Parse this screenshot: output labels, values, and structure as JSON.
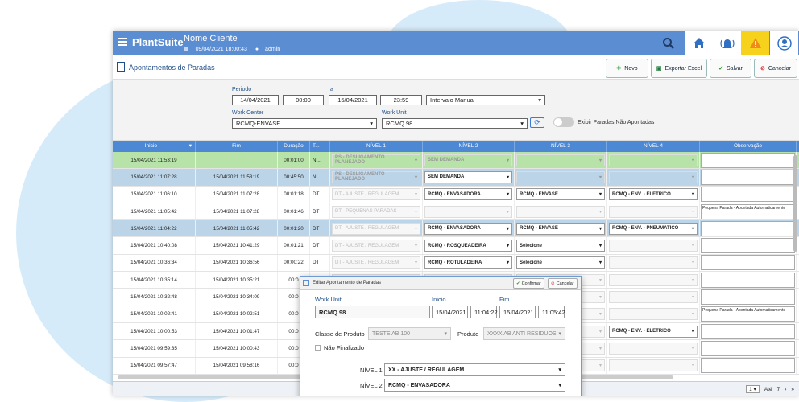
{
  "topbar": {
    "logo": "PlantSuite",
    "client": "Nome Cliente",
    "datetime": "09/04/2021 18:00:43",
    "user": "admin",
    "icons": [
      "search-icon",
      "home-icon",
      "alarm-icon",
      "warning-icon",
      "user-circle-icon"
    ]
  },
  "page": {
    "title": "Apontamentos de Paradas",
    "buttons": {
      "novo": "Novo",
      "exportar": "Exportar Excel",
      "salvar": "Salvar",
      "cancelar": "Cancelar"
    }
  },
  "filters": {
    "periodo_label": "Periodo",
    "a_label": "a",
    "start_date": "14/04/2021",
    "start_time": "00:00",
    "end_date": "15/04/2021",
    "end_time": "23:59",
    "intervalo": "Intervalo Manual",
    "work_center_label": "Work Center",
    "work_center": "RCMQ-ENVASE",
    "work_unit_label": "Work Unit",
    "work_unit": "RCMQ 98",
    "toggle_label": "Exibir Paradas Não Apontadas"
  },
  "grid": {
    "headers": [
      "Inicio",
      "Fim",
      "Duração",
      "T...",
      "NÍVEL 1",
      "NÍVEL 2",
      "NÍVEL 3",
      "NÍVEL 4",
      "Observação"
    ],
    "rows": [
      {
        "inicio": "15/04/2021 11:53:19",
        "fim": "",
        "duracao": "00:01:00",
        "t": "N...",
        "n1": "PS - DESLIGAMENTO PLANEJADO",
        "n2": "SEM DEMANDA",
        "n3": "",
        "n4": "",
        "obs": ""
      },
      {
        "inicio": "15/04/2021 11:07:28",
        "fim": "15/04/2021 11:53:19",
        "duracao": "00:45:50",
        "t": "N...",
        "n1": "PS - DESLIGAMENTO PLANEJADO",
        "n2": "SEM DEMANDA",
        "n3": "",
        "n4": "",
        "obs": ""
      },
      {
        "inicio": "15/04/2021 11:06:10",
        "fim": "15/04/2021 11:07:28",
        "duracao": "00:01:18",
        "t": "DT",
        "n1": "DT - AJUSTE / REGULAGEM",
        "n2": "RCMQ - ENVASADORA",
        "n3": "RCMQ - ENVASE",
        "n4": "RCMQ - ENV. - ELETRICO",
        "obs": ""
      },
      {
        "inicio": "15/04/2021 11:05:42",
        "fim": "15/04/2021 11:07:28",
        "duracao": "00:01:46",
        "t": "DT",
        "n1": "DT - PEQUENAS PARADAS",
        "n2": "",
        "n3": "",
        "n4": "",
        "obs": "Pequena Parada - Apontada Automaticamente"
      },
      {
        "inicio": "15/04/2021 11:04:22",
        "fim": "15/04/2021 11:05:42",
        "duracao": "00:01:20",
        "t": "DT",
        "n1": "DT - AJUSTE / REGULAGEM",
        "n2": "RCMQ - ENVASADORA",
        "n3": "RCMQ - ENVASE",
        "n4": "RCMQ - ENV. - PNEUMATICO",
        "obs": ""
      },
      {
        "inicio": "15/04/2021 10:40:08",
        "fim": "15/04/2021 10:41:29",
        "duracao": "00:01:21",
        "t": "DT",
        "n1": "DT - AJUSTE / REGULAGEM",
        "n2": "RCMQ - ROSQUEADEIRA",
        "n3": "Selecione",
        "n4": "",
        "obs": ""
      },
      {
        "inicio": "15/04/2021 10:36:34",
        "fim": "15/04/2021 10:36:56",
        "duracao": "00:00:22",
        "t": "DT",
        "n1": "DT - AJUSTE / REGULAGEM",
        "n2": "RCMQ - ROTULADEIRA",
        "n3": "Selecione",
        "n4": "",
        "obs": ""
      },
      {
        "inicio": "15/04/2021 10:35:14",
        "fim": "15/04/2021 10:35:21",
        "duracao": "00:0",
        "t": "",
        "n1": "",
        "n2": "",
        "n3": "",
        "n4": "",
        "obs": ""
      },
      {
        "inicio": "15/04/2021 10:32:48",
        "fim": "15/04/2021 10:34:09",
        "duracao": "00:0",
        "t": "",
        "n1": "",
        "n2": "",
        "n3": "",
        "n4": "",
        "obs": ""
      },
      {
        "inicio": "15/04/2021 10:02:41",
        "fim": "15/04/2021 10:02:51",
        "duracao": "00:0",
        "t": "",
        "n1": "",
        "n2": "",
        "n3": "",
        "n4": "",
        "obs": "Pequena Parada - Apontada Automaticamente"
      },
      {
        "inicio": "15/04/2021 10:00:53",
        "fim": "15/04/2021 10:01:47",
        "duracao": "00:0",
        "t": "",
        "n1": "",
        "n2": "",
        "n3": "",
        "n4": "RCMQ - ENV. - ELETRICO",
        "obs": ""
      },
      {
        "inicio": "15/04/2021 09:59:35",
        "fim": "15/04/2021 10:00:43",
        "duracao": "00:0",
        "t": "",
        "n1": "",
        "n2": "",
        "n3": "",
        "n4": "",
        "obs": ""
      },
      {
        "inicio": "15/04/2021 09:57:47",
        "fim": "15/04/2021 09:58:16",
        "duracao": "00:0",
        "t": "",
        "n1": "",
        "n2": "",
        "n3": "",
        "n4": "",
        "obs": ""
      }
    ]
  },
  "pager": {
    "page_size": "1",
    "ate_label": "Até",
    "ate_value": "7"
  },
  "modal": {
    "title": "Editar Apontamento de Paradas",
    "confirmar": "Confirmar",
    "cancelar": "Cancelar",
    "work_unit_label": "Work Unit",
    "work_unit": "RCMQ 98",
    "inicio_label": "Inicio",
    "inicio_date": "15/04/2021",
    "inicio_time": "11:04:22",
    "fim_label": "Fim",
    "fim_date": "15/04/2021",
    "fim_time": "11:05:42",
    "classe_label": "Classe de Produto",
    "classe": "TESTE AB 100",
    "produto_label": "Produto",
    "produto": "XXXX AB ANTI RESIDUOS",
    "nao_finalizado": "Não Finalizado",
    "nivel1_label": "NÍVEL 1",
    "nivel1": "XX - AJUSTE / REGULAGEM",
    "nivel2_label": "NÍVEL 2",
    "nivel2": "RCMQ - ENVASADORA"
  },
  "colors": {
    "topbar": "#5b8dd3",
    "header": "#4d88d5",
    "row_green": "#b8e3a8",
    "row_blue": "#bcd4e8",
    "warning": "#f7d21c"
  }
}
